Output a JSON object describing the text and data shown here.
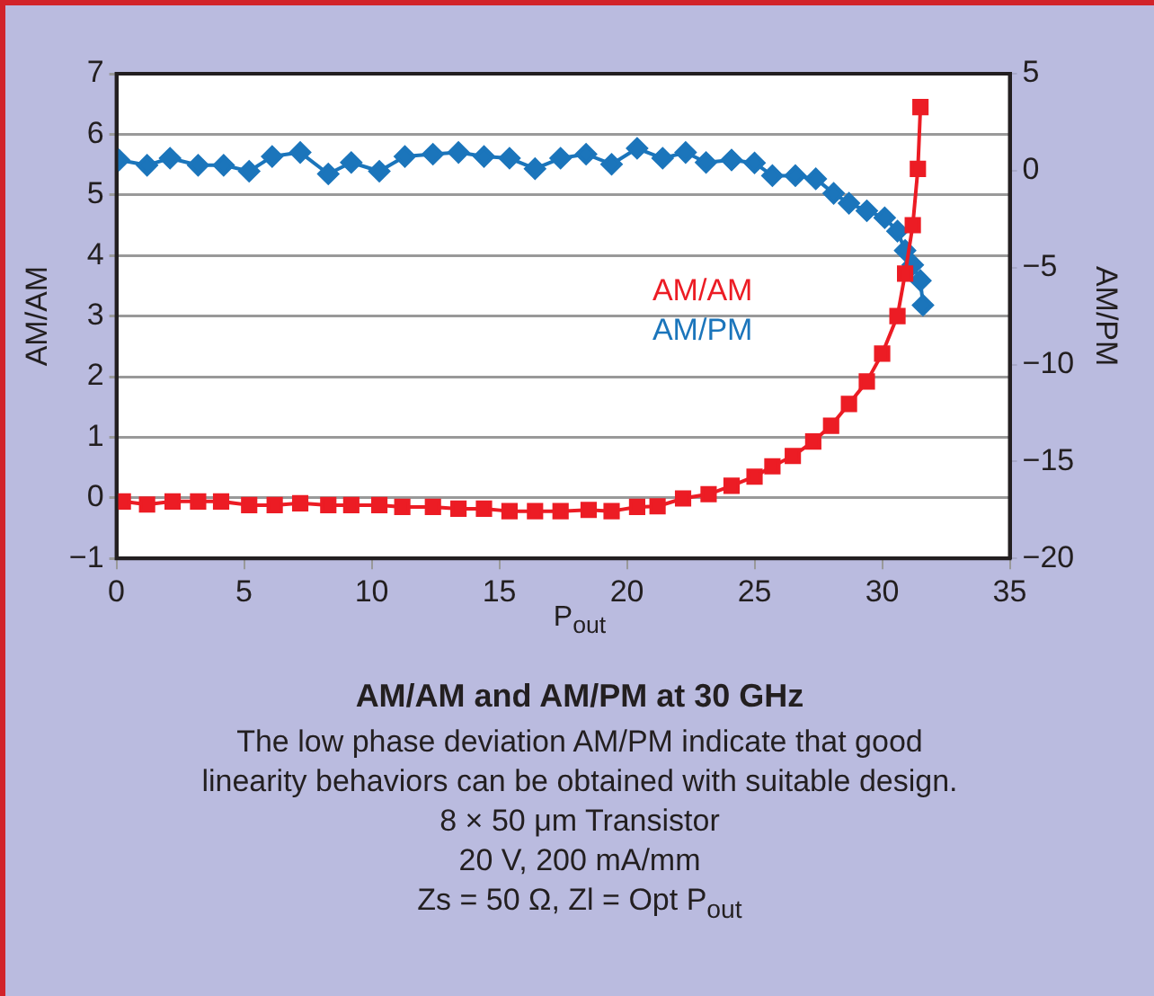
{
  "chart_data": {
    "type": "line",
    "title": "AM/AM and AM/PM at 30 GHz",
    "subtitle": "The low phase deviation AM/PM indicate that good linearity behaviors can be obtained with suitable design.",
    "annotations": [
      "8 × 50 μm Transistor",
      "20 V, 200 mA/mm",
      "Zs = 50 Ω, Zl = Opt P$_{out}$"
    ],
    "xlabel": "P$_{out}$",
    "ylabel": "AM/AM",
    "y2label": "AM/PM",
    "xlim": [
      0,
      35
    ],
    "xticks": [
      0,
      5,
      10,
      15,
      20,
      25,
      30,
      35
    ],
    "ylim": [
      -1,
      7
    ],
    "yticks": [
      -1,
      0,
      1,
      2,
      3,
      4,
      5,
      6,
      7
    ],
    "y2lim": [
      -20,
      5
    ],
    "y2ticks": [
      -20,
      -15,
      -10,
      -5,
      0,
      5
    ],
    "grid": "y",
    "legend": "right",
    "series": [
      {
        "name": "AM/AM",
        "color": "#ec1c24",
        "marker": "square",
        "axis": "y",
        "x": [
          0.25,
          1.2,
          2.2,
          3.2,
          4.1,
          5.2,
          6.2,
          7.2,
          8.3,
          9.2,
          10.3,
          11.2,
          12.4,
          13.4,
          14.4,
          15.4,
          16.4,
          17.4,
          18.5,
          19.4,
          20.4,
          21.2,
          22.2,
          23.2,
          24.1,
          25.0,
          25.7,
          26.5,
          27.3,
          28.0,
          28.7,
          29.4,
          30.0,
          30.6,
          30.9,
          31.2,
          31.4,
          31.5
        ],
        "values": [
          -0.06,
          -0.11,
          -0.06,
          -0.06,
          -0.06,
          -0.12,
          -0.12,
          -0.09,
          -0.12,
          -0.12,
          -0.12,
          -0.15,
          -0.15,
          -0.18,
          -0.18,
          -0.22,
          -0.22,
          -0.22,
          -0.2,
          -0.22,
          -0.15,
          -0.14,
          -0.01,
          0.06,
          0.2,
          0.35,
          0.52,
          0.69,
          0.93,
          1.19,
          1.55,
          1.92,
          2.38,
          3.0,
          3.7,
          4.5,
          5.43,
          6.45
        ]
      },
      {
        "name": "AM/PM",
        "color": "#1b75bb",
        "marker": "diamond",
        "axis": "y2",
        "x": [
          0.1,
          1.2,
          2.1,
          3.2,
          4.2,
          5.2,
          6.1,
          7.2,
          8.3,
          9.2,
          10.3,
          11.3,
          12.4,
          13.4,
          14.4,
          15.4,
          16.4,
          17.4,
          18.4,
          19.4,
          20.4,
          21.4,
          22.3,
          23.1,
          24.1,
          25.0,
          25.7,
          26.6,
          27.4,
          28.1,
          28.7,
          29.4,
          30.1,
          30.6,
          30.9,
          31.2,
          31.5,
          31.6
        ],
        "values": [
          0.55,
          0.28,
          0.64,
          0.28,
          0.28,
          -0.03,
          0.73,
          0.94,
          -0.17,
          0.42,
          -0.03,
          0.73,
          0.85,
          0.94,
          0.73,
          0.64,
          0.1,
          0.64,
          0.85,
          0.33,
          1.15,
          0.64,
          0.94,
          0.42,
          0.55,
          0.4,
          -0.26,
          -0.26,
          -0.42,
          -1.17,
          -1.68,
          -2.07,
          -2.43,
          -3.12,
          -4.12,
          -4.86,
          -5.67,
          -6.94
        ]
      }
    ]
  }
}
